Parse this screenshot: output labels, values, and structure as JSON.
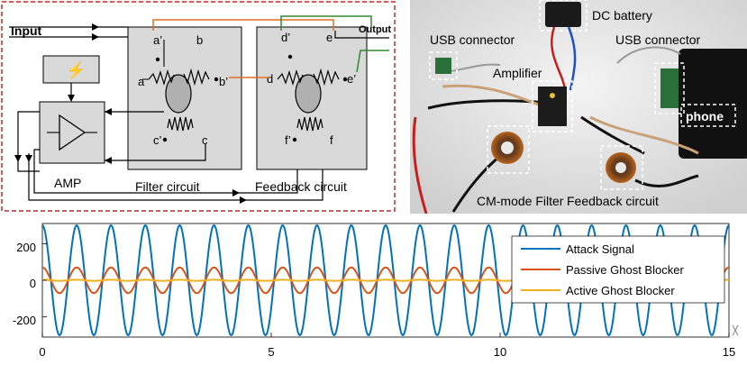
{
  "diagram": {
    "input_label": "Input",
    "output_label": "Output",
    "amp_label": "AMP",
    "filter_label": "Filter circuit",
    "feedback_label": "Feedback circuit",
    "filter_terminals": {
      "a_prime": "a’",
      "b": "b",
      "a": "a",
      "b_prime": "b’",
      "c_prime": "c’",
      "c": "c"
    },
    "feedback_terminals": {
      "d_prime": "d’",
      "e": "e",
      "d": "d",
      "e_prime": "e’",
      "f_prime": "f’",
      "f": "f"
    },
    "colors": {
      "frame": "#d22020",
      "block_fill": "#d9d9d9",
      "wire_orange": "#e07020",
      "wire_green": "#2e8b2e"
    }
  },
  "photo": {
    "labels": {
      "dc_battery": "DC battery",
      "usb_left": "USB connector",
      "usb_right": "USB connector",
      "amplifier": "Amplifier",
      "phone": "phone",
      "cm_filter": "CM-mode Filter",
      "feedback": "Feedback circuit"
    }
  },
  "chart_data": {
    "type": "line",
    "x_ticks": [
      "0",
      "5",
      "10",
      "15"
    ],
    "y_ticks": [
      "200",
      "0",
      "-200"
    ],
    "xlim": [
      0,
      15
    ],
    "ylim": [
      -310,
      310
    ],
    "grid": false,
    "legend_position": "right",
    "series": [
      {
        "name": "Attack Signal",
        "color": "#0072bd",
        "amplitude": 300,
        "cycles_per_unit": 1.3333,
        "phase_deg": 90
      },
      {
        "name": "Passive Ghost Blocker",
        "color": "#d95319",
        "amplitude": 70,
        "cycles_per_unit": 1.3333,
        "phase_deg": 90
      },
      {
        "name": "Active Ghost Blocker",
        "color": "#edb120",
        "amplitude": 3,
        "cycles_per_unit": 1.3333,
        "phase_deg": 90
      }
    ]
  }
}
